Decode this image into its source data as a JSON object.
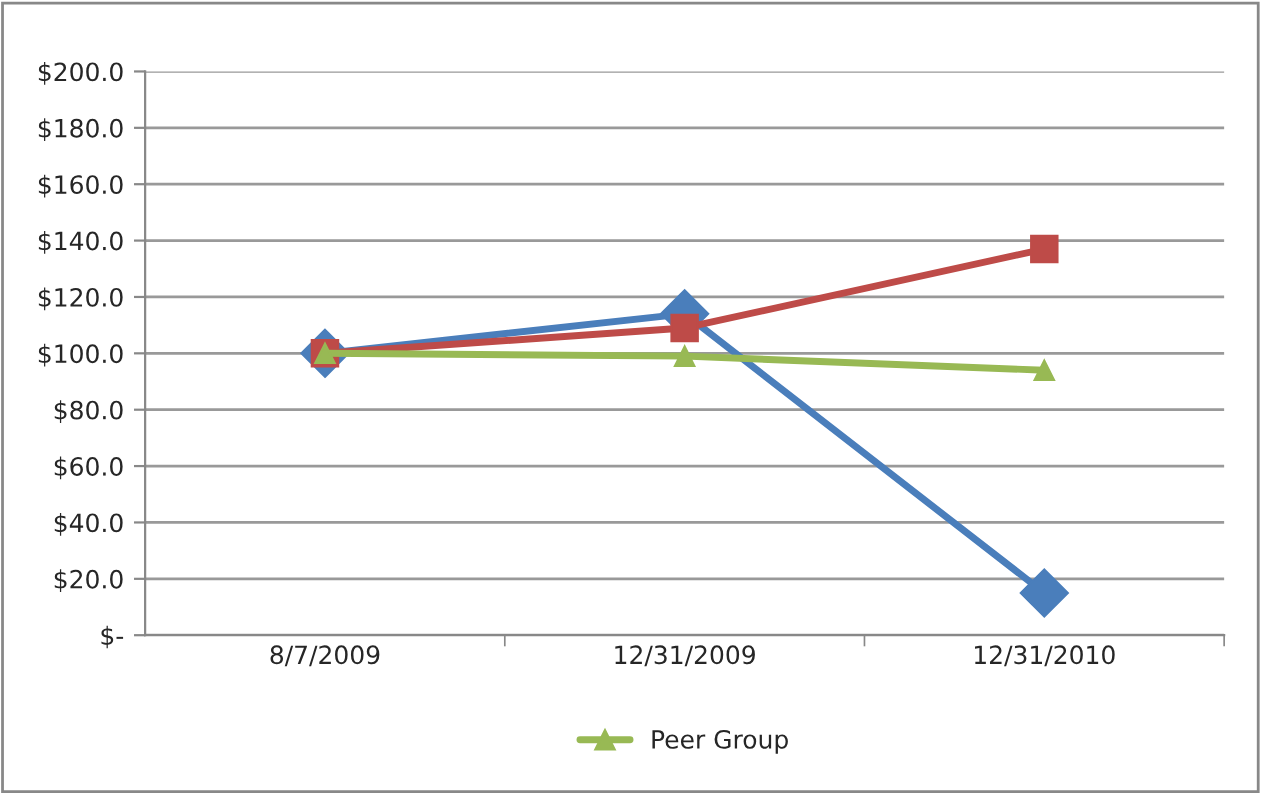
{
  "chart_data": {
    "type": "line",
    "categories": [
      "8/7/2009",
      "12/31/2009",
      "12/31/2010"
    ],
    "series": [
      {
        "color": "#4a7ebb",
        "marker": "diamond",
        "values": [
          100,
          114,
          15
        ]
      },
      {
        "color": "#be4b48",
        "marker": "square",
        "values": [
          100,
          109,
          137
        ]
      },
      {
        "name": "Peer Group",
        "color": "#98b954",
        "marker": "triangle",
        "values": [
          100,
          99,
          94
        ]
      }
    ],
    "ylim": [
      0,
      200
    ],
    "yticks": [
      {
        "value": 0,
        "label": "$-"
      },
      {
        "value": 20,
        "label": "$20.0"
      },
      {
        "value": 40,
        "label": "$40.0"
      },
      {
        "value": 60,
        "label": "$60.0"
      },
      {
        "value": 80,
        "label": "$80.0"
      },
      {
        "value": 100,
        "label": "$100.0"
      },
      {
        "value": 120,
        "label": "$120.0"
      },
      {
        "value": 140,
        "label": "$140.0"
      },
      {
        "value": 160,
        "label": "$160.0"
      },
      {
        "value": 180,
        "label": "$180.0"
      },
      {
        "value": 200,
        "label": "$200.0"
      }
    ],
    "grid": "y",
    "legend": "bottom",
    "line_style": "solid"
  }
}
